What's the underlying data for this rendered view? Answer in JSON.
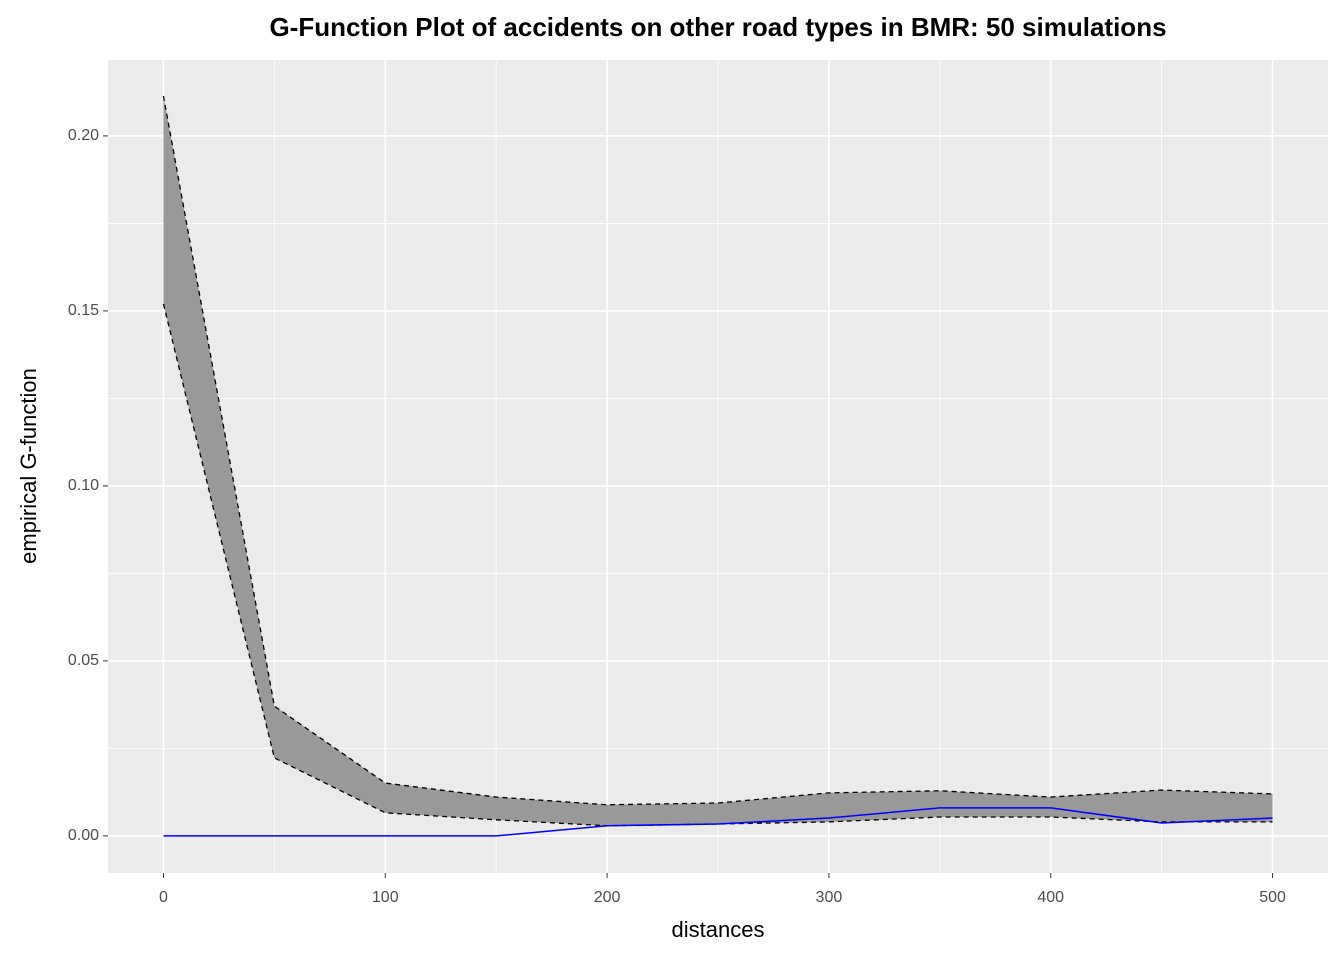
{
  "chart_data": {
    "type": "line",
    "title": "G-Function Plot of accidents on other road types in BMR: 50 simulations",
    "x_label": "distances",
    "y_label": "empirical G-function",
    "x": [
      0,
      50,
      100,
      150,
      200,
      250,
      300,
      350,
      400,
      450,
      500
    ],
    "band": {
      "color": "#999999",
      "line_color": "#000000",
      "upper": [
        0.2114,
        0.0371,
        0.0151,
        0.0111,
        0.0089,
        0.0094,
        0.0123,
        0.0129,
        0.0111,
        0.0131,
        0.012
      ],
      "lower": [
        0.152,
        0.0223,
        0.0066,
        0.0046,
        0.0029,
        0.0034,
        0.004,
        0.0054,
        0.0054,
        0.004,
        0.004
      ]
    },
    "series": [
      {
        "color": "#0000ff",
        "values": [
          0,
          0,
          0,
          0,
          0.0029,
          0.0034,
          0.0051,
          0.008,
          0.008,
          0.0037,
          0.0051
        ]
      }
    ],
    "xlim": [
      -25,
      525
    ],
    "ylim": [
      -0.0106,
      0.2217
    ],
    "xticks": [
      0,
      100,
      200,
      300,
      400,
      500
    ],
    "x_minor_ticks": [
      50,
      150,
      250,
      350,
      450
    ],
    "yticks": [
      {
        "value": 0,
        "label": "0.00"
      },
      {
        "value": 0.05,
        "label": "0.05"
      },
      {
        "value": 0.1,
        "label": "0.10"
      },
      {
        "value": 0.15,
        "label": "0.15"
      },
      {
        "value": 0.2,
        "label": "0.20"
      }
    ],
    "y_minor_ticks": [
      0.025,
      0.075,
      0.125,
      0.175
    ],
    "grid": true
  }
}
